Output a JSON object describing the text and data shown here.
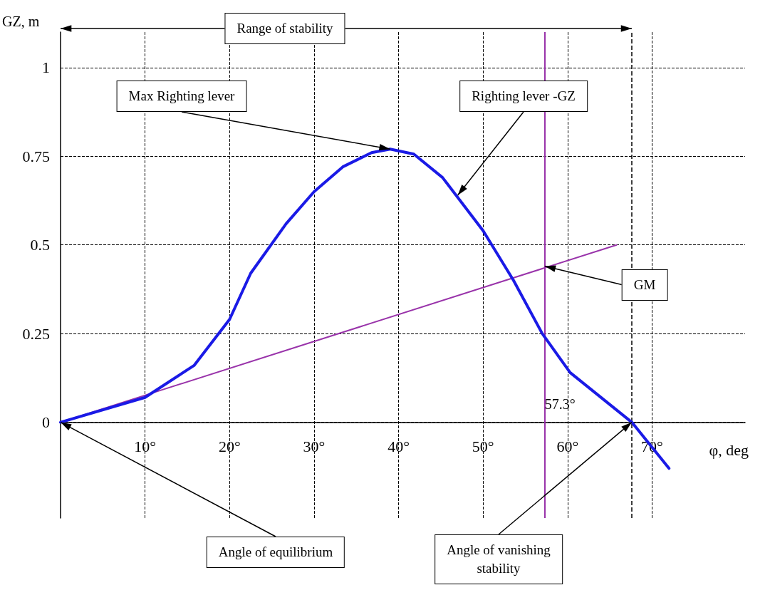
{
  "chart_data": {
    "type": "line",
    "xlabel": "φ, deg",
    "ylabel": "GZ, m",
    "x": [
      0,
      10,
      15.8,
      20,
      22.5,
      26.7,
      30,
      33.4,
      36.8,
      39,
      41.8,
      45.2,
      50,
      53.6,
      57,
      60.3,
      67.6,
      72
    ],
    "series": [
      {
        "color": "#1a1ae6",
        "values": [
          0,
          0.07,
          0.16,
          0.29,
          0.42,
          0.56,
          0.65,
          0.72,
          0.76,
          0.77,
          0.756,
          0.69,
          0.54,
          0.4,
          0.25,
          0.14,
          0,
          -0.13
        ]
      },
      {
        "color": "#9933aa",
        "x": [
          0,
          65.8
        ],
        "values": [
          0,
          0.5
        ]
      }
    ],
    "xlim": [
      0,
      81
    ],
    "ylim": [
      -0.27,
      1.1
    ],
    "xticks": [
      {
        "value": 10,
        "label": "10°"
      },
      {
        "value": 20,
        "label": "20°"
      },
      {
        "value": 30,
        "label": "30°"
      },
      {
        "value": 40,
        "label": "40°"
      },
      {
        "value": 50,
        "label": "50°"
      },
      {
        "value": 60,
        "label": "60°"
      },
      {
        "value": 70,
        "label": "70°"
      }
    ],
    "yticks": [
      0,
      0.25,
      0.5,
      0.75,
      1
    ],
    "grid": true,
    "marker": "none",
    "line_style": "solid",
    "ref_lines": [
      {
        "axis": "x",
        "value": 57.3,
        "label": "57.3°",
        "color": "#9933aa",
        "line_style": "solid"
      },
      {
        "axis": "x",
        "value": 67.6,
        "label": null,
        "color": "#000000",
        "line_style": "dashed"
      }
    ],
    "annotations": [
      "Range of stability",
      {
        "text": "Max Righting lever",
        "x": 39,
        "y": 0.77
      },
      {
        "text": "Righting lever -GZ",
        "x": 47,
        "y": 0.64
      },
      {
        "text": "GM",
        "x": 57.3,
        "y": 0.44
      },
      {
        "text": "Angle of equilibrium",
        "x": 0,
        "y": 0
      },
      {
        "text": "Angle of vanishing\nstability",
        "x": 67.6,
        "y": 0
      }
    ]
  }
}
